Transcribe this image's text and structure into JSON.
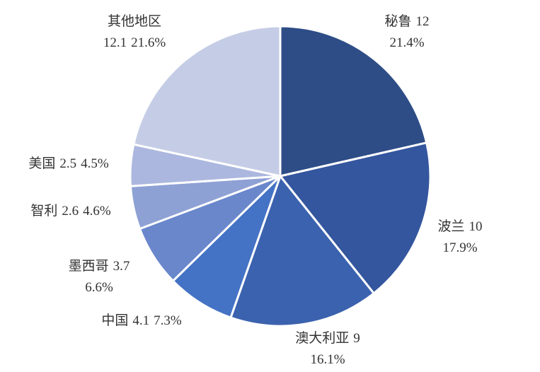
{
  "chart_data": {
    "type": "pie",
    "categories": [
      "秘鲁",
      "波兰",
      "澳大利亚",
      "中国",
      "墨西哥",
      "智利",
      "美国",
      "其他地区"
    ],
    "values": [
      12,
      10,
      9,
      4.1,
      3.7,
      2.6,
      2.5,
      12.1
    ],
    "percent_labels": [
      "21.4%",
      "17.9%",
      "16.1%",
      "7.3%",
      "6.6%",
      "4.6%",
      "4.5%",
      "21.6%"
    ],
    "colors": [
      "#2e4d87",
      "#34569e",
      "#3b62ae",
      "#4472c4",
      "#6a87cc",
      "#8ea1d5",
      "#abb7de",
      "#c5cde6"
    ]
  }
}
